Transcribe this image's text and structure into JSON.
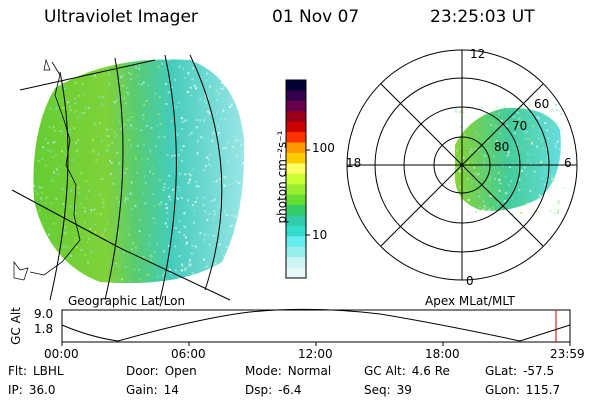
{
  "header": {
    "title": "Ultraviolet Imager",
    "date": "01 Nov 07",
    "time": "23:25:03 UT"
  },
  "left_panel": {
    "caption": "Geographic Lat/Lon"
  },
  "right_panel": {
    "caption": "Apex MLat/MLT",
    "mlt_labels": {
      "top": "12",
      "left": "18",
      "right": "6",
      "bottom": "0"
    },
    "mlat_labels": [
      "80",
      "70",
      "60"
    ]
  },
  "colorbar": {
    "unit_label": "photon cm⁻²s⁻¹",
    "ticks": [
      "100",
      "10"
    ],
    "colors": [
      "#000033",
      "#33004d",
      "#66004d",
      "#99001a",
      "#cc0000",
      "#ff3300",
      "#ff9900",
      "#ffcc00",
      "#ffff66",
      "#ccff33",
      "#99ee33",
      "#66dd33",
      "#33cc66",
      "#33ccaa",
      "#33ddcc",
      "#66eeee",
      "#99eeee",
      "#ccf5f5",
      "#e6f7f7"
    ]
  },
  "altitude_plot": {
    "ylabel": "GC Alt",
    "y_ticks": [
      "9.0",
      "1.8"
    ],
    "x_ticks": [
      "00:00",
      "06:00",
      "12:00",
      "18:00",
      "23:59"
    ],
    "marker_color": "#cc0000"
  },
  "info": {
    "rows": [
      [
        {
          "k": "Flt:",
          "v": "LBHL"
        },
        {
          "k": "Door:",
          "v": "Open"
        },
        {
          "k": "Mode:",
          "v": "Normal"
        },
        {
          "k": "GC Alt:",
          "v": "4.6 Re"
        },
        {
          "k": "GLat:",
          "v": "-57.5"
        }
      ],
      [
        {
          "k": "IP:",
          "v": "36.0"
        },
        {
          "k": "Gain:",
          "v": "14"
        },
        {
          "k": "Dsp:",
          "v": "-6.4"
        },
        {
          "k": "Seq:",
          "v": "39"
        },
        {
          "k": "GLon:",
          "v": "115.7"
        }
      ]
    ]
  }
}
